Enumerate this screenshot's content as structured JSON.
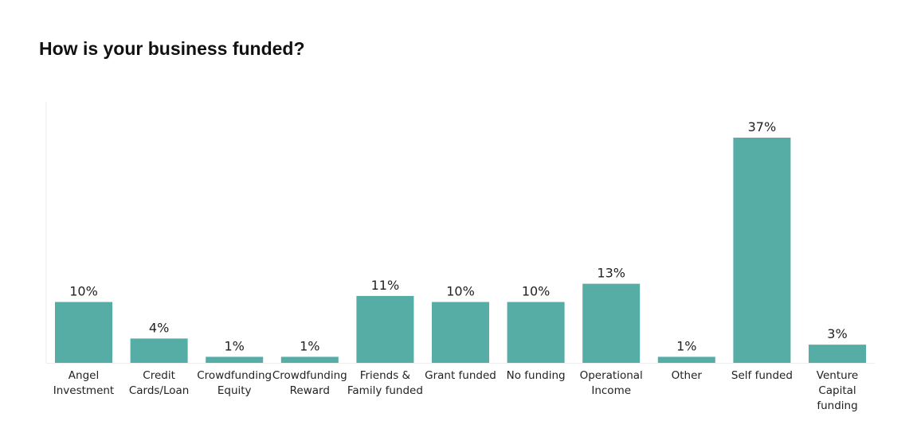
{
  "chart_data": {
    "type": "bar",
    "title": "How is your business funded?",
    "categories": [
      "Angel Investment",
      "Credit Cards/Loan",
      "Crowdfunding Equity",
      "Crowdfunding Reward",
      "Friends & Family funded",
      "Grant funded",
      "No funding",
      "Operational Income",
      "Other",
      "Self funded",
      "Venture Capital funding"
    ],
    "category_label_lines": [
      [
        "Angel",
        "Investment"
      ],
      [
        "Credit",
        "Cards/Loan"
      ],
      [
        "Crowdfunding",
        "Equity"
      ],
      [
        "Crowdfunding",
        "Reward"
      ],
      [
        "Friends &",
        "Family funded"
      ],
      [
        "Grant funded"
      ],
      [
        "No funding"
      ],
      [
        "Operational",
        "Income"
      ],
      [
        "Other"
      ],
      [
        "Self funded"
      ],
      [
        "Venture",
        "Capital",
        "funding"
      ]
    ],
    "values": [
      10,
      4,
      1,
      1,
      11,
      10,
      10,
      13,
      1,
      37,
      3
    ],
    "data_labels": [
      "10%",
      "4%",
      "1%",
      "1%",
      "11%",
      "10%",
      "10%",
      "13%",
      "1%",
      "37%",
      "3%"
    ],
    "unit": "%",
    "xlabel": "",
    "ylabel": "",
    "ylim": [
      0,
      37
    ],
    "grid": false,
    "bar_color": "#56ADA6"
  }
}
